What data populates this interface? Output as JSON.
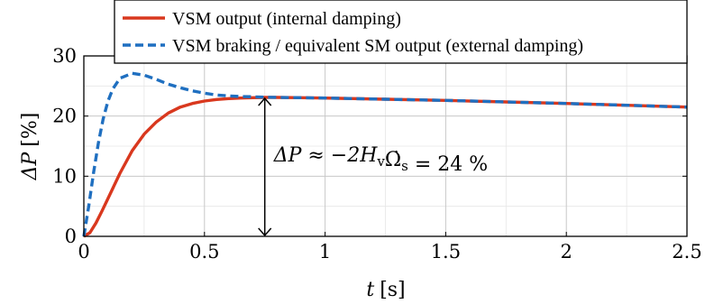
{
  "chart_data": {
    "type": "line",
    "xlabel_symbol": "t",
    "xlabel_unit": "[s]",
    "ylabel_symbol": "ΔP",
    "ylabel_unit": "[%]",
    "xlim": [
      0,
      2.5
    ],
    "ylim": [
      0,
      30
    ],
    "xticks": [
      0,
      0.5,
      1,
      1.5,
      2,
      2.5
    ],
    "xtick_labels": [
      "0",
      "0.5",
      "1",
      "1.5",
      "2",
      "2.5"
    ],
    "yticks": [
      0,
      10,
      20,
      30
    ],
    "ytick_labels": [
      "0",
      "10",
      "20",
      "30"
    ],
    "grid": true,
    "legend_position": "top",
    "series": [
      {
        "name": "VSM output (internal damping)",
        "color": "#d9381e",
        "style": "solid",
        "x": [
          0,
          0.025,
          0.05,
          0.075,
          0.1,
          0.15,
          0.2,
          0.25,
          0.3,
          0.35,
          0.4,
          0.45,
          0.5,
          0.55,
          0.6,
          0.65,
          0.7,
          0.75,
          0.8,
          0.9,
          1.0,
          1.25,
          1.5,
          1.75,
          2.0,
          2.25,
          2.5
        ],
        "y": [
          0,
          0.6,
          2.2,
          4.2,
          6.3,
          10.5,
          14.2,
          17.0,
          19.0,
          20.5,
          21.5,
          22.1,
          22.5,
          22.75,
          22.9,
          23.0,
          23.05,
          23.1,
          23.1,
          23.05,
          23.0,
          22.8,
          22.6,
          22.35,
          22.1,
          21.8,
          21.5
        ]
      },
      {
        "name": "VSM braking / equivalent SM output (external damping)",
        "color": "#1f6fc0",
        "style": "dashed",
        "x": [
          0,
          0.02,
          0.04,
          0.06,
          0.08,
          0.1,
          0.12,
          0.15,
          0.2,
          0.25,
          0.3,
          0.35,
          0.4,
          0.45,
          0.5,
          0.55,
          0.6,
          0.65,
          0.7,
          0.75,
          0.8,
          0.9,
          1.0,
          1.25,
          1.5,
          1.75,
          2.0,
          2.25,
          2.5
        ],
        "y": [
          0,
          5.0,
          10.5,
          15.5,
          19.5,
          22.5,
          24.5,
          26.3,
          27.1,
          26.8,
          26.1,
          25.3,
          24.7,
          24.2,
          23.8,
          23.5,
          23.35,
          23.25,
          23.2,
          23.15,
          23.1,
          23.05,
          23.0,
          22.8,
          22.6,
          22.35,
          22.1,
          21.8,
          21.5
        ]
      }
    ],
    "annotation": {
      "text_lhs": "ΔP ≈ −2H",
      "sub1": "v",
      "omega": "Ω̇",
      "sub2": "s",
      "text_rhs": " = 24 %",
      "arrow_x": 0.75,
      "arrow_from": 0,
      "arrow_to": 23.1
    }
  }
}
